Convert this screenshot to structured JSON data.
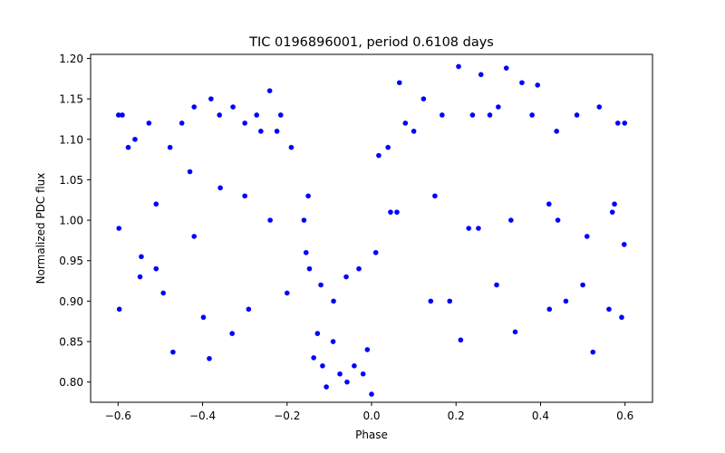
{
  "chart_data": {
    "type": "scatter",
    "title": "TIC 0196896001, period 0.6108 days",
    "xlabel": "Phase",
    "ylabel": "Normalized PDC flux",
    "xlim": [
      -0.665,
      0.665
    ],
    "ylim": [
      0.775,
      1.205
    ],
    "x_ticks": [
      -0.6,
      -0.4,
      -0.2,
      0.0,
      0.2,
      0.4,
      0.6
    ],
    "x_tick_labels": [
      "−0.6",
      "−0.4",
      "−0.2",
      "0.0",
      "0.2",
      "0.4",
      "0.6"
    ],
    "y_ticks": [
      0.8,
      0.85,
      0.9,
      0.95,
      1.0,
      1.05,
      1.1,
      1.15,
      1.2
    ],
    "y_tick_labels": [
      "0.80",
      "0.85",
      "0.90",
      "0.95",
      "1.00",
      "1.05",
      "1.10",
      "1.15",
      "1.20"
    ],
    "grid": false,
    "legend": false,
    "marker_color": "#0000ff",
    "series": [
      {
        "x": [
          -0.599,
          -0.597,
          -0.59,
          -0.576,
          -0.56,
          -0.548,
          -0.527,
          -0.51,
          -0.493,
          -0.477,
          -0.47,
          -0.449,
          -0.43,
          -0.42,
          -0.398,
          -0.384,
          -0.38,
          -0.36,
          -0.33,
          -0.328,
          -0.3,
          -0.291,
          -0.272,
          -0.262,
          -0.241,
          -0.224,
          -0.215,
          -0.2,
          -0.19,
          -0.16,
          -0.147,
          -0.137,
          -0.128,
          -0.116,
          -0.107,
          -0.091,
          -0.075,
          -0.058,
          -0.041,
          -0.02,
          -0.01,
          0.0,
          0.017,
          0.039,
          0.066,
          0.08,
          0.1,
          0.123,
          0.14,
          0.167,
          0.185,
          0.206,
          0.211,
          0.239,
          0.259,
          0.28,
          0.296,
          0.3,
          0.319,
          0.34,
          0.356,
          0.38,
          0.393,
          0.421,
          0.438,
          0.46,
          0.486,
          0.5,
          0.524,
          0.539,
          0.562,
          0.583,
          0.592,
          0.599,
          -0.598,
          -0.51,
          -0.42,
          -0.3,
          -0.24,
          -0.15,
          -0.12,
          -0.09,
          -0.06,
          -0.03,
          0.01,
          0.06,
          0.15,
          0.23,
          0.33,
          0.42,
          0.51,
          0.57,
          0.598,
          -0.545,
          -0.358,
          -0.155,
          0.045,
          0.253,
          0.441,
          0.575
        ],
        "y": [
          1.13,
          0.89,
          1.13,
          1.09,
          1.1,
          0.93,
          1.12,
          0.94,
          0.91,
          1.09,
          0.837,
          1.12,
          1.06,
          1.14,
          0.88,
          0.829,
          1.15,
          1.13,
          0.86,
          1.14,
          1.12,
          0.89,
          1.13,
          1.11,
          1.16,
          1.11,
          1.13,
          0.91,
          1.09,
          1.0,
          0.94,
          0.83,
          0.86,
          0.82,
          0.794,
          0.85,
          0.81,
          0.8,
          0.82,
          0.81,
          0.84,
          0.785,
          1.08,
          1.09,
          1.17,
          1.12,
          1.11,
          1.15,
          0.9,
          1.13,
          0.9,
          1.19,
          0.852,
          1.13,
          1.18,
          1.13,
          0.92,
          1.14,
          1.188,
          0.862,
          1.17,
          1.13,
          1.167,
          0.89,
          1.11,
          0.9,
          1.13,
          0.92,
          0.837,
          1.14,
          0.89,
          1.12,
          0.88,
          1.12,
          0.99,
          1.02,
          0.98,
          1.03,
          1.0,
          1.03,
          0.92,
          0.9,
          0.93,
          0.94,
          0.96,
          1.01,
          1.03,
          0.99,
          1.0,
          1.02,
          0.98,
          1.01,
          0.97,
          0.955,
          1.04,
          0.96,
          1.01,
          0.99,
          1.0,
          1.02
        ]
      }
    ]
  }
}
